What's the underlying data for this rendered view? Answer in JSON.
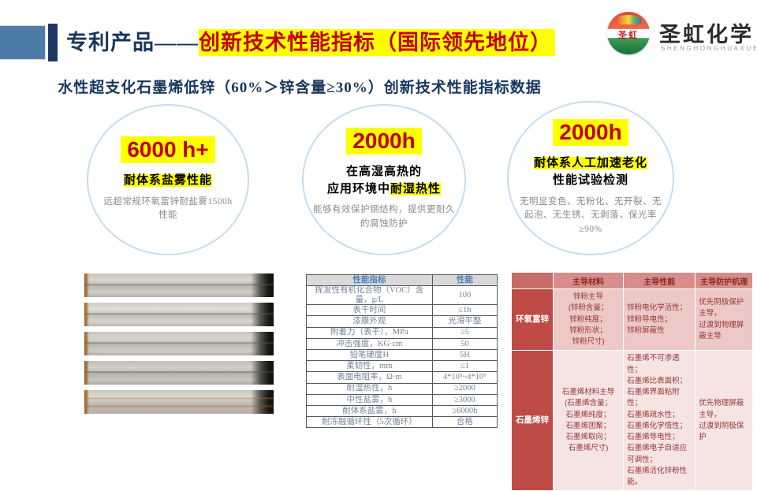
{
  "header": {
    "title_prefix": "专利产品——",
    "title_highlight": "创新技术性能指标（国际领先地位）"
  },
  "logo": {
    "badge_text": "圣虹",
    "company_cn": "圣虹化学",
    "company_en": "SHENGHONGHUAXUE"
  },
  "subtitle": "水性超支化石墨烯低锌（60%＞锌含量≥30%）创新技术性能指标数据",
  "circles": [
    {
      "value": "6000 h+",
      "heading_highlight": "耐体系盐雾性能",
      "desc": "远超常规环氧富锌耐盐雾1500h\n性能"
    },
    {
      "value": "2000h",
      "line1": "在高湿高热的",
      "line2_plain": "应用环境中",
      "line2_highlight": "耐湿热性",
      "desc": "能够有效保护钢结构，提供更耐久\n的腐蚀防护"
    },
    {
      "value": "2000h",
      "heading_highlight": "耐体系人工加速老化",
      "heading_plain": "性能试验检测",
      "desc": "无明显变色、无粉化、无开裂、无\n起泡、无生锈、无剥落，保光率\n≥90%"
    }
  ],
  "perf_table": {
    "headers": [
      "性能指标",
      "性能"
    ],
    "rows": [
      [
        "挥发性有机化合物（VOC）含量，g/L",
        "100"
      ],
      [
        "表干时间",
        "≤1h"
      ],
      [
        "漆膜外观",
        "光滑平整"
      ],
      [
        "附着力（表干），MPa",
        "≥5"
      ],
      [
        "冲击强度，KG·cm",
        "50"
      ],
      [
        "铅笔硬度H",
        "5H"
      ],
      [
        "柔韧性，mm",
        "≤1"
      ],
      [
        "表面电阻率，Ω·m",
        "4*10⁵~4*10⁹"
      ],
      [
        "耐湿热性，h",
        "≥2000"
      ],
      [
        "中性盐雾，h",
        "≥3000"
      ],
      [
        "耐体系盐雾，h",
        "≥6000h"
      ],
      [
        "耐冻融循环性（5次循环）",
        "合格"
      ]
    ]
  },
  "cmp_table": {
    "headers": [
      "主导材料",
      "主导性能",
      "主导防护机理"
    ],
    "rows": [
      {
        "label": "环氧富锌",
        "material": "锌粉主导\n(锌粉含量；\n锌粉纯度；\n锌粉形状；\n锌粉尺寸)",
        "performance": "锌粉电化学活性；\n锌粉导电性；\n锌粉屏蔽性",
        "mechanism": "优先阴极保护主导，\n过渡到物理屏蔽主导"
      },
      {
        "label": "石墨烯锌",
        "material": "石墨烯材料主导\n(石墨烯含量；\n石墨烯纯度；\n石墨烯团聚；\n石墨烯取向；\n石墨烯尺寸)",
        "performance": "石墨烯不可渗透性；\n石墨烯比表面积；\n石墨烯界面粘附性；\n石墨烯疏水性；\n石墨烯化学惰性；\n石墨烯导电性；\n石墨烯电子自适应可调性；\n石墨烯活化锌粉性能。",
        "mechanism": "优先物理屏蔽主导，\n过渡到阴极保护"
      }
    ]
  },
  "colors": {
    "accent_navy": "#17365D",
    "highlight_yellow": "#FFFF00",
    "highlight_red": "#C00000",
    "table_header_blue": "#4F81BD",
    "cmp_red_dark": "#BF4B47",
    "cmp_pink_light": "#F6E4E3"
  }
}
